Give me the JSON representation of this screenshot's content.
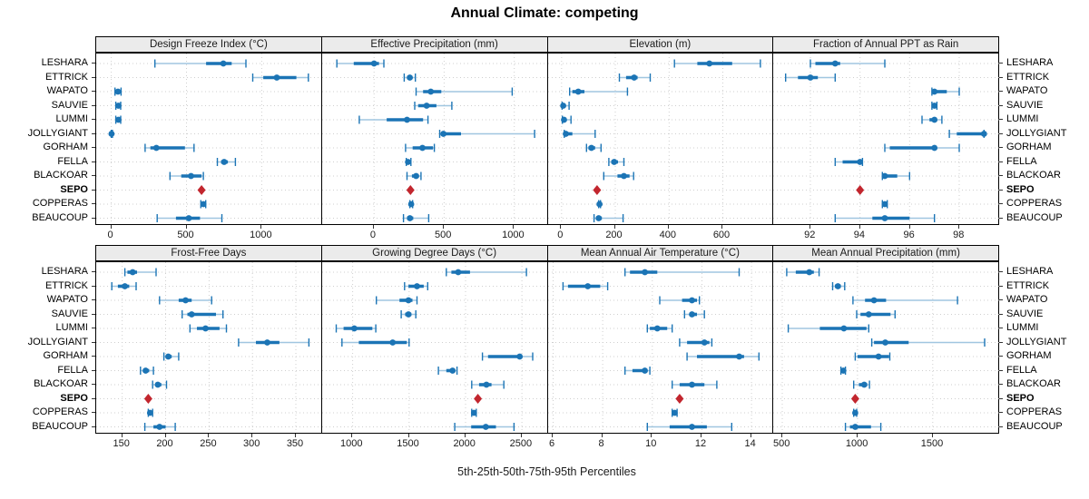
{
  "title": "Annual Climate: competing",
  "caption": "5th-25th-50th-75th-95th Percentiles",
  "sites": [
    "LESHARA",
    "ETTRICK",
    "WAPATO",
    "SAUVIE",
    "LUMMI",
    "JOLLYGIANT",
    "GORHAM",
    "FELLA",
    "BLACKOAR",
    "SEPO",
    "COPPERAS",
    "BEAUCOUP"
  ],
  "highlight_site": "SEPO",
  "colors": {
    "blue": "#1b74b5",
    "light_blue": "#a0c6e0",
    "red": "#c2262e",
    "grid": "#cfcfcf",
    "strip_bg": "#ebebeb",
    "border": "#000000"
  },
  "chart_data": {
    "type": "dotplot-percentiles",
    "percentile_labels": [
      "5th",
      "25th",
      "50th",
      "75th",
      "95th"
    ],
    "note": "values arrays are [p5,p25,p50,p75,p95] per site in sites order; single number = highlighted point only",
    "panels": [
      {
        "title": "Design Freeze Index (°C)",
        "row": 0,
        "col": 0,
        "xlim": [
          -100,
          1400
        ],
        "ticks": [
          0,
          500,
          1000
        ],
        "values": [
          [
            290,
            630,
            745,
            800,
            895
          ],
          [
            940,
            1010,
            1100,
            1230,
            1310
          ],
          [
            25,
            35,
            45,
            55,
            65
          ],
          [
            30,
            40,
            48,
            56,
            63
          ],
          [
            30,
            40,
            48,
            56,
            63
          ],
          [
            0,
            1,
            2,
            4,
            8
          ],
          [
            225,
            260,
            300,
            490,
            550
          ],
          [
            705,
            730,
            750,
            775,
            825
          ],
          [
            390,
            465,
            530,
            600,
            612
          ],
          600,
          [
            595,
            605,
            612,
            620,
            628
          ],
          [
            305,
            430,
            515,
            590,
            735
          ]
        ]
      },
      {
        "title": "Effective Precipitation (mm)",
        "row": 0,
        "col": 1,
        "xlim": [
          -370,
          1240
        ],
        "ticks": [
          0,
          500,
          1000
        ],
        "values": [
          [
            -265,
            -145,
            0,
            35,
            70
          ],
          [
            215,
            235,
            255,
            272,
            295
          ],
          [
            300,
            350,
            405,
            480,
            985
          ],
          [
            290,
            315,
            375,
            445,
            555
          ],
          [
            -105,
            90,
            235,
            350,
            385
          ],
          [
            468,
            485,
            495,
            620,
            1145
          ],
          [
            225,
            275,
            345,
            420,
            430
          ],
          [
            230,
            237,
            242,
            250,
            263
          ],
          [
            235,
            270,
            300,
            320,
            335
          ],
          260,
          [
            255,
            260,
            265,
            270,
            275
          ],
          [
            210,
            235,
            256,
            280,
            390
          ]
        ]
      },
      {
        "title": "Elevation (m)",
        "row": 0,
        "col": 2,
        "xlim": [
          -50,
          790
        ],
        "ticks": [
          0,
          200,
          400,
          600
        ],
        "values": [
          [
            420,
            505,
            550,
            635,
            740
          ],
          [
            215,
            240,
            270,
            283,
            330
          ],
          [
            30,
            40,
            62,
            85,
            245
          ],
          [
            2,
            4,
            6,
            12,
            28
          ],
          [
            3,
            6,
            9,
            16,
            35
          ],
          [
            10,
            13,
            16,
            40,
            125
          ],
          [
            93,
            100,
            111,
            125,
            147
          ],
          [
            176,
            185,
            196,
            210,
            232
          ],
          [
            157,
            208,
            232,
            253,
            268
          ],
          132,
          [
            138,
            140,
            141,
            143,
            145
          ],
          [
            121,
            130,
            138,
            150,
            229
          ]
        ]
      },
      {
        "title": "Fraction of Annual PPT as Rain",
        "row": 0,
        "col": 3,
        "xlim": [
          90.5,
          99.6
        ],
        "ticks": [
          92,
          94,
          96,
          98
        ],
        "values": [
          [
            92.0,
            92.2,
            93.0,
            93.2,
            95.0
          ],
          [
            91.0,
            91.5,
            92.0,
            92.3,
            93.0
          ],
          [
            96.9,
            96.95,
            97.0,
            97.5,
            98.0
          ],
          [
            96.9,
            96.95,
            97.0,
            97.05,
            97.1
          ],
          [
            96.5,
            96.8,
            97.0,
            97.1,
            97.3
          ],
          [
            97.6,
            97.9,
            99.0,
            99.0,
            99.0
          ],
          [
            95.0,
            95.2,
            97.0,
            97.1,
            98.0
          ],
          [
            93.0,
            93.3,
            94.0,
            94.0,
            94.1
          ],
          [
            94.9,
            95.0,
            95.0,
            95.5,
            96.0
          ],
          94.0,
          [
            94.9,
            94.95,
            95.0,
            95.05,
            95.1
          ],
          [
            93.0,
            94.5,
            95.0,
            96.0,
            97.0
          ]
        ]
      },
      {
        "title": "Frost-Free Days",
        "row": 1,
        "col": 0,
        "xlim": [
          120,
          380
        ],
        "ticks": [
          150,
          200,
          250,
          300,
          350
        ],
        "values": [
          [
            153,
            156,
            162,
            167,
            189
          ],
          [
            138,
            145,
            153,
            158,
            166
          ],
          [
            193,
            215,
            223,
            230,
            253
          ],
          [
            219,
            225,
            230,
            258,
            266
          ],
          [
            228,
            236,
            246,
            262,
            270
          ],
          [
            284,
            304,
            317,
            331,
            365
          ],
          [
            198,
            200,
            203,
            207,
            215
          ],
          [
            171,
            174,
            177,
            181,
            186
          ],
          [
            185,
            188,
            191,
            195,
            201
          ],
          180,
          [
            180,
            181,
            182,
            184,
            185
          ],
          [
            176,
            186,
            193,
            200,
            211
          ]
        ]
      },
      {
        "title": "Growing Degree Days (°C)",
        "row": 1,
        "col": 1,
        "xlim": [
          730,
          2730
        ],
        "ticks": [
          1000,
          1500,
          2000,
          2500
        ],
        "values": [
          [
            1830,
            1875,
            1935,
            2040,
            2540
          ],
          [
            1460,
            1495,
            1570,
            1630,
            1665
          ],
          [
            1210,
            1415,
            1495,
            1530,
            1570
          ],
          [
            1430,
            1465,
            1495,
            1520,
            1560
          ],
          [
            855,
            920,
            1015,
            1175,
            1205
          ],
          [
            905,
            1055,
            1355,
            1480,
            1500
          ],
          [
            2150,
            2200,
            2480,
            2500,
            2595
          ],
          [
            1760,
            1830,
            1885,
            1905,
            1925
          ],
          [
            2055,
            2120,
            2185,
            2230,
            2340
          ],
          2110,
          [
            2055,
            2065,
            2075,
            2085,
            2095
          ],
          [
            1905,
            2050,
            2180,
            2270,
            2430
          ]
        ]
      },
      {
        "title": "Mean Annual Air Temperature (°C)",
        "row": 1,
        "col": 2,
        "xlim": [
          5.8,
          14.9
        ],
        "ticks": [
          6,
          8,
          10,
          12,
          14
        ],
        "values": [
          [
            8.9,
            9.1,
            9.7,
            10.2,
            13.5
          ],
          [
            6.4,
            6.6,
            7.4,
            7.9,
            8.2
          ],
          [
            10.3,
            11.2,
            11.6,
            11.8,
            11.9
          ],
          [
            11.3,
            11.5,
            11.6,
            11.8,
            12.1
          ],
          [
            9.8,
            9.9,
            10.2,
            10.6,
            10.8
          ],
          [
            11.1,
            11.4,
            12.1,
            12.3,
            12.4
          ],
          [
            11.4,
            11.8,
            13.5,
            13.7,
            14.3
          ],
          [
            8.9,
            9.2,
            9.7,
            9.8,
            9.9
          ],
          [
            10.8,
            11.1,
            11.6,
            12.1,
            12.6
          ],
          11.1,
          [
            10.8,
            10.85,
            10.9,
            10.95,
            11.0
          ],
          [
            9.8,
            10.7,
            11.6,
            12.2,
            13.2
          ]
        ]
      },
      {
        "title": "Mean Annual Precipitation (mm)",
        "row": 1,
        "col": 3,
        "xlim": [
          440,
          1940
        ],
        "ticks": [
          500,
          1000,
          1500
        ],
        "values": [
          [
            530,
            590,
            680,
            710,
            745
          ],
          [
            835,
            850,
            870,
            890,
            915
          ],
          [
            970,
            1050,
            1110,
            1190,
            1665
          ],
          [
            995,
            1020,
            1075,
            1220,
            1250
          ],
          [
            540,
            750,
            910,
            1060,
            1075
          ],
          [
            1095,
            1110,
            1185,
            1340,
            1845
          ],
          [
            985,
            1000,
            1140,
            1210,
            1215
          ],
          [
            890,
            900,
            906,
            912,
            920
          ],
          [
            975,
            1010,
            1045,
            1065,
            1080
          ],
          985,
          [
            975,
            980,
            985,
            990,
            995
          ],
          [
            920,
            950,
            985,
            1090,
            1155
          ]
        ]
      }
    ]
  }
}
